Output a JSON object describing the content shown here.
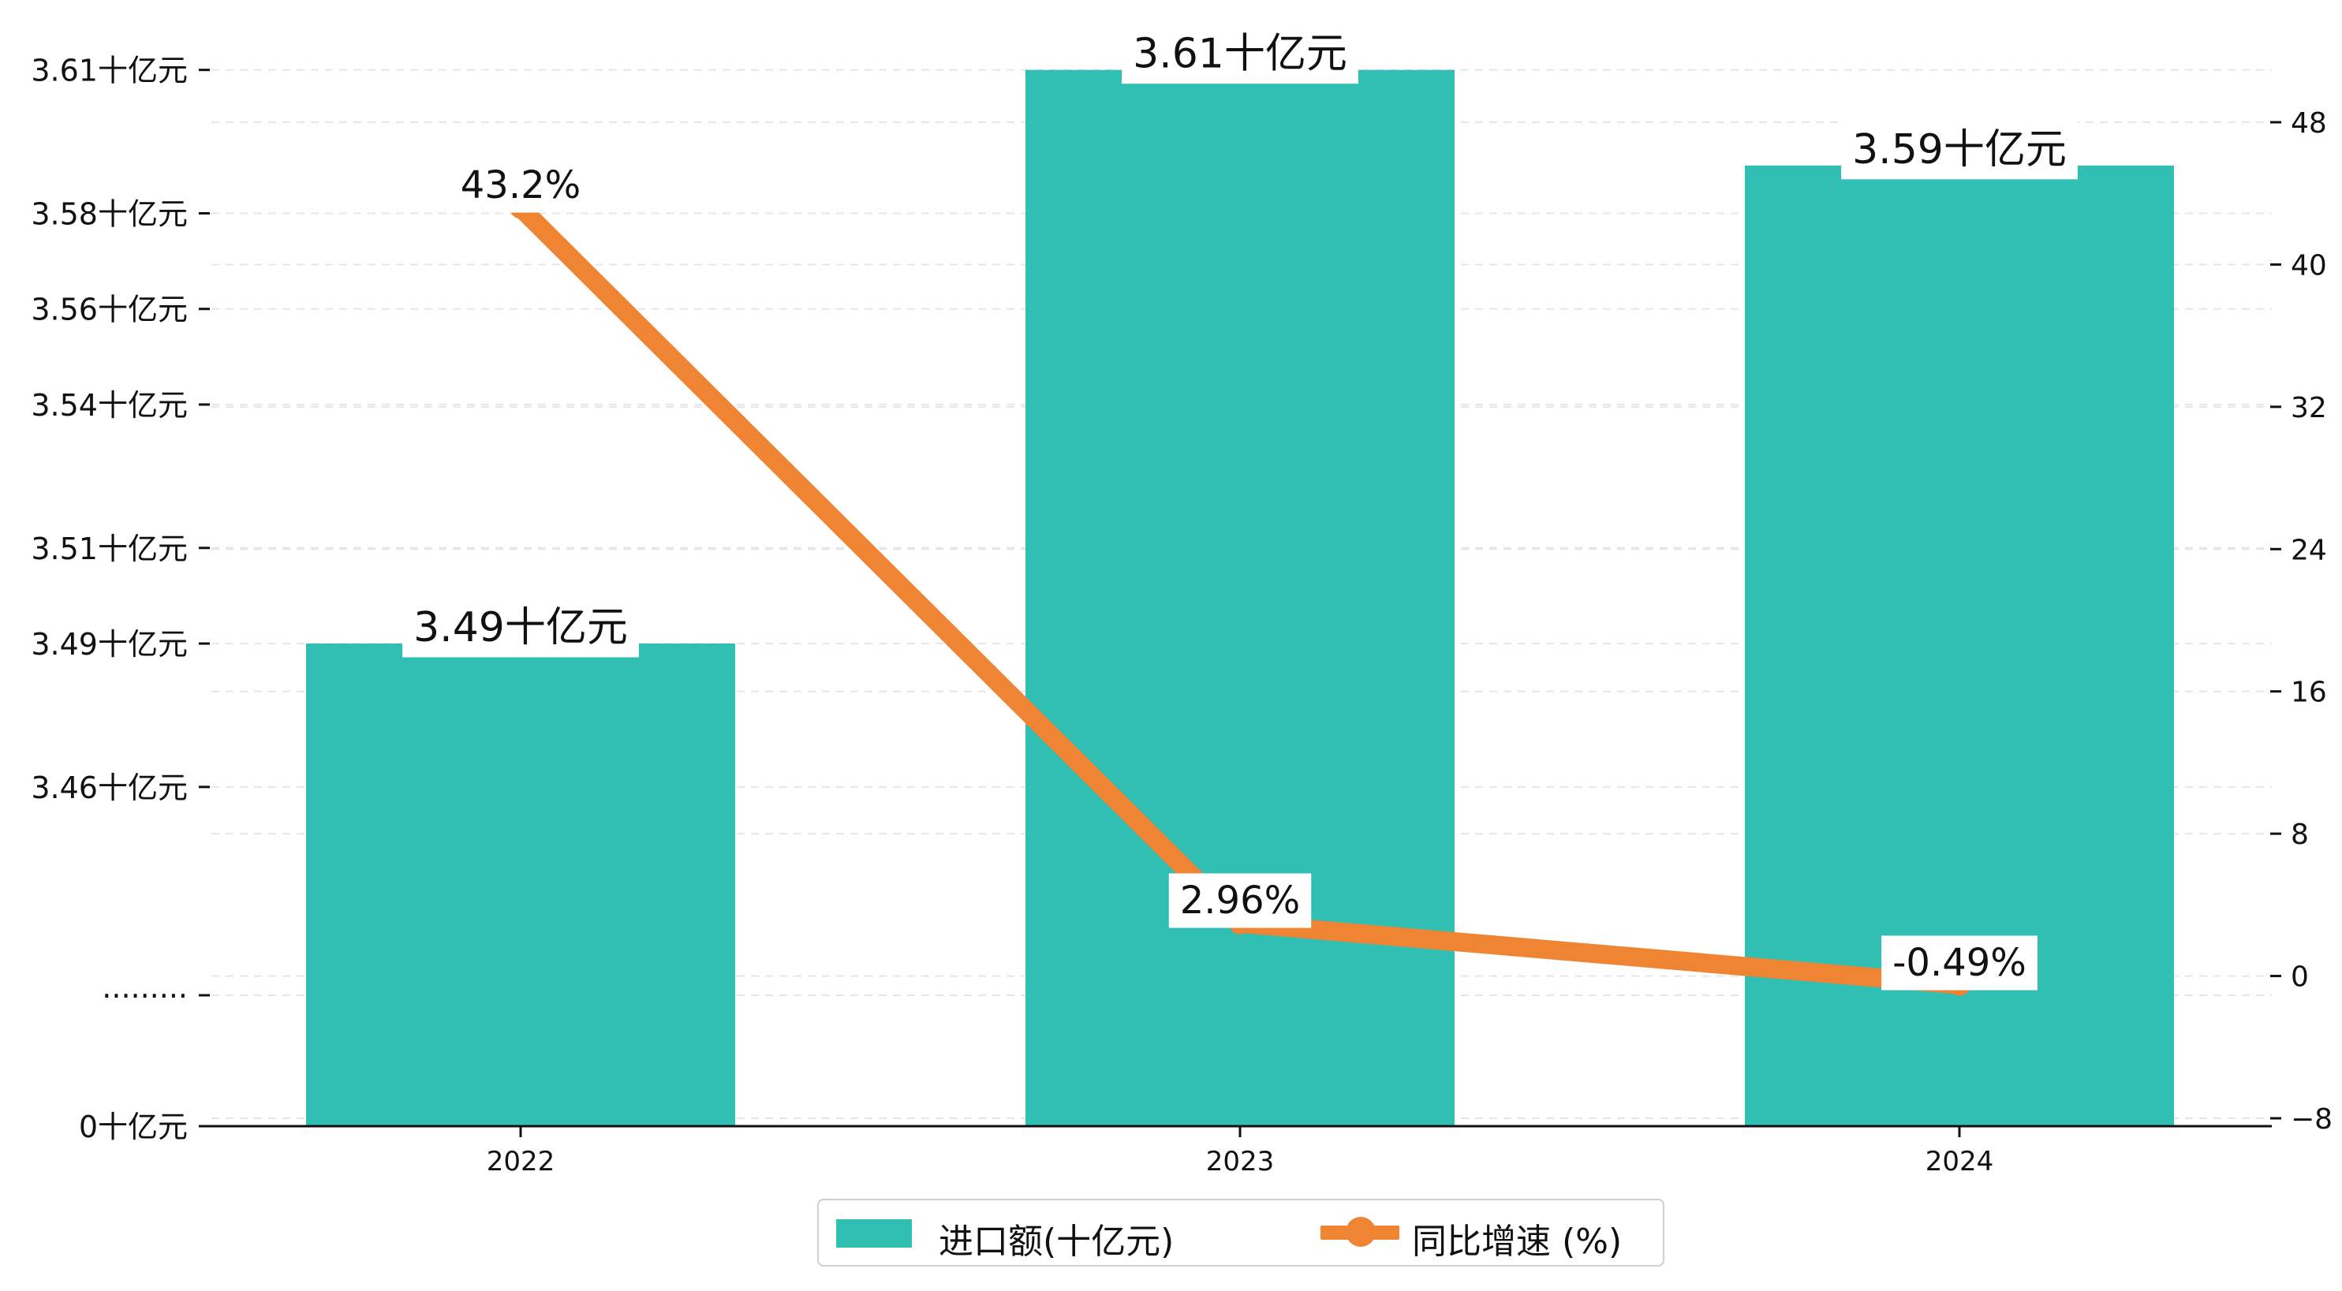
{
  "chart_data": {
    "type": "bar",
    "categories": [
      "2022",
      "2023",
      "2024"
    ],
    "series": [
      {
        "name": "进口额(十亿元)",
        "type": "bar",
        "axis": "left",
        "values": [
          3.49,
          3.61,
          3.59
        ],
        "labels": [
          "3.49十亿元",
          "3.61十亿元",
          "3.59十亿元"
        ]
      },
      {
        "name": "同比增速 (%)",
        "type": "line",
        "axis": "right",
        "values": [
          43.2,
          2.96,
          -0.49
        ],
        "labels": [
          "43.2%",
          "2.96%",
          "-0.49%"
        ]
      }
    ],
    "left_axis": {
      "broken": true,
      "break_label": "·········",
      "ticks": [
        {
          "value": 0,
          "label": "0十亿元"
        },
        {
          "value": 3.46,
          "label": "3.46十亿元"
        },
        {
          "value": 3.49,
          "label": "3.49十亿元"
        },
        {
          "value": 3.51,
          "label": "3.51十亿元"
        },
        {
          "value": 3.54,
          "label": "3.54十亿元"
        },
        {
          "value": 3.56,
          "label": "3.56十亿元"
        },
        {
          "value": 3.58,
          "label": "3.58十亿元"
        },
        {
          "value": 3.61,
          "label": "3.61十亿元"
        }
      ]
    },
    "right_axis": {
      "ylim": [
        -8,
        52
      ],
      "ticks": [
        -8,
        0,
        8,
        16,
        24,
        32,
        40,
        48
      ],
      "tick_labels": [
        "−8",
        "0",
        "8",
        "16",
        "24",
        "32",
        "40",
        "48"
      ]
    },
    "grid": true,
    "legend_position": "bottom-center",
    "colors": {
      "bar": "#32bfb3",
      "line": "#ef8433",
      "grid": "#e6e6e6",
      "axis": "#111111"
    }
  },
  "legend": {
    "bar_label": "进口额(十亿元)",
    "line_label": "同比增速 (%)"
  }
}
